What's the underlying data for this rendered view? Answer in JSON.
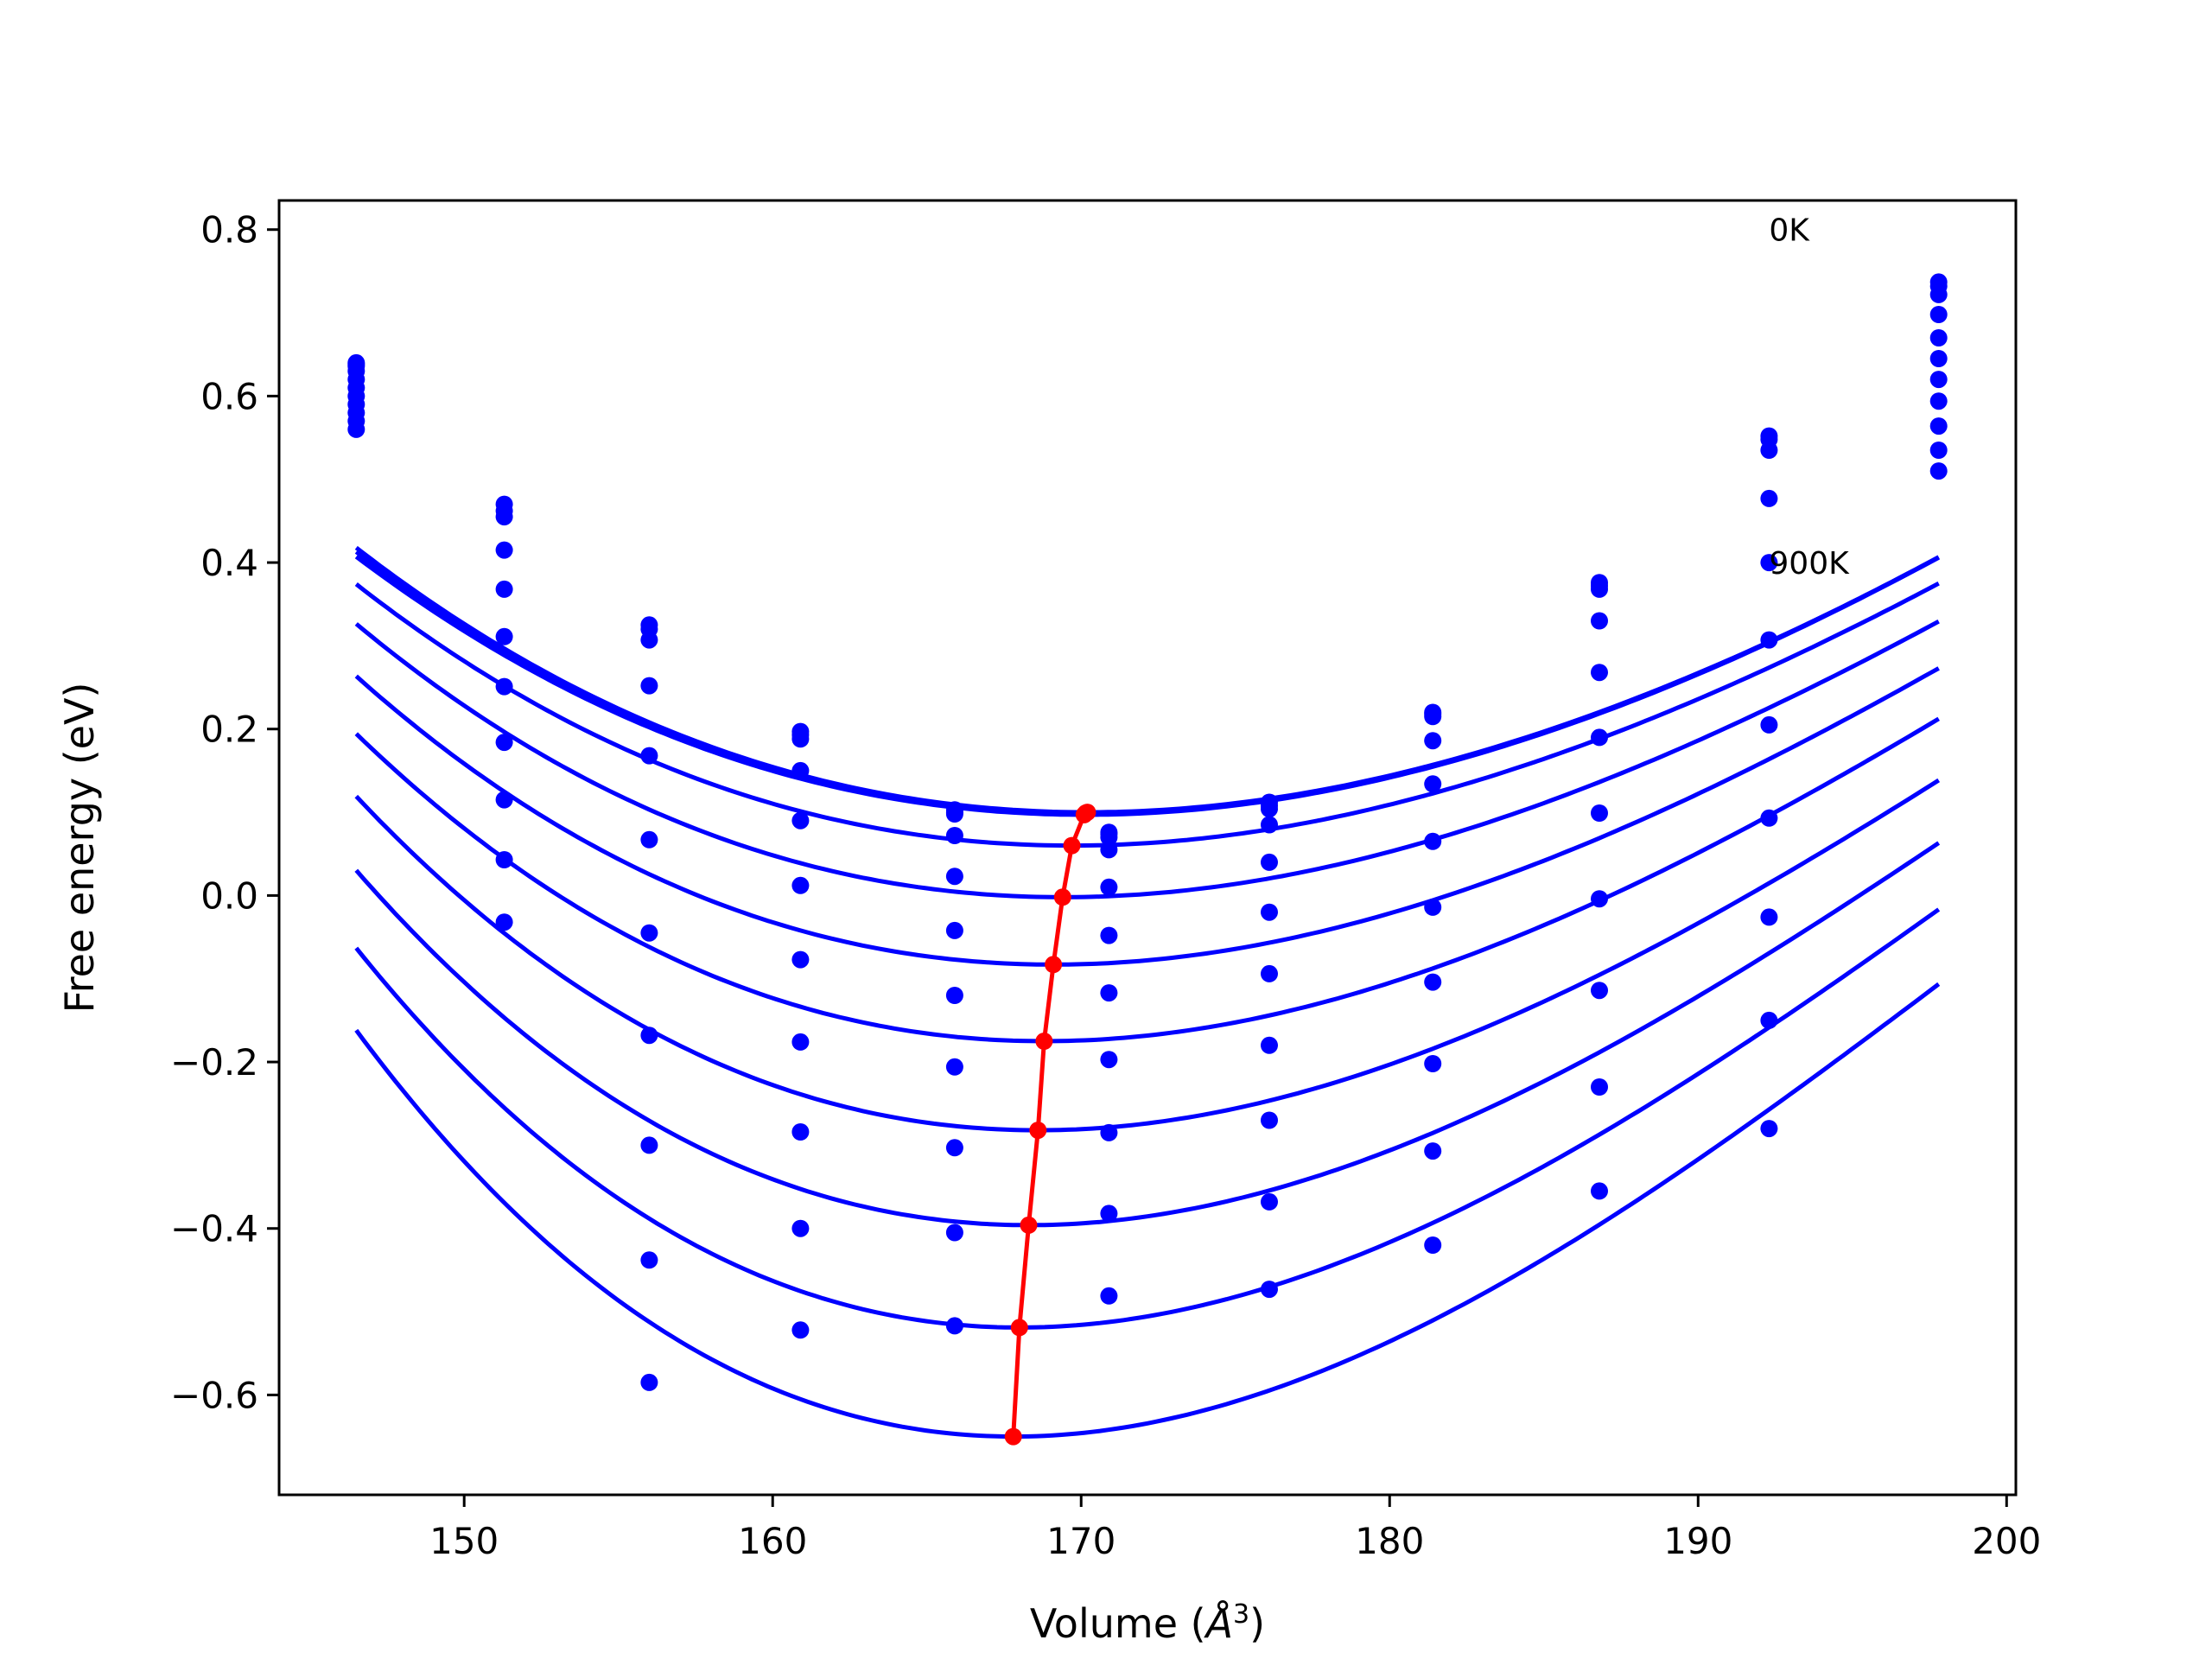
{
  "chart_data": {
    "type": "line",
    "xlabel": "Volume (",
    "xlabel_sym": "Å",
    "xlabel_exp": "3",
    "xlabel_close": ")",
    "ylabel": "Free energy (eV)",
    "xlim": [
      144,
      200.3
    ],
    "ylim": [
      -0.72,
      0.835
    ],
    "xticks": [
      150,
      160,
      170,
      180,
      190,
      200
    ],
    "yticks": [
      0.8,
      0.6,
      0.4,
      0.2,
      0.0,
      -0.2,
      -0.4,
      -0.6
    ],
    "ytick_labels": [
      "0.8",
      "0.6",
      "0.4",
      "0.2",
      "0.0",
      "−0.2",
      "−0.4",
      "−0.6"
    ],
    "grid": false,
    "annotations": [
      {
        "text": "0K",
        "x": 192.3,
        "y": 0.8
      },
      {
        "text": "900K",
        "x": 192.3,
        "y": 0.4
      }
    ],
    "colors": {
      "curves": "#0000ff",
      "points": "#0000ff",
      "minima": "#ff0000"
    },
    "fit_range": [
      146.5,
      197.8
    ],
    "point_volumes": [
      146.5,
      151.3,
      156.0,
      160.9,
      165.9,
      170.9,
      176.1,
      181.4,
      186.8,
      192.3,
      197.8
    ],
    "series": [
      {
        "v0": 170.2,
        "e0": 0.1,
        "k": 0.00049,
        "c": -3.2e-06,
        "points": [
          0.64,
          0.47,
          0.325,
          0.197,
          0.103,
          0.076,
          0.112,
          0.22,
          0.376,
          0.552,
          0.737
        ]
      },
      {
        "v0": 170.15,
        "e0": 0.099,
        "k": 0.000488,
        "c": -3.1e-06,
        "points": [
          0.638,
          0.462,
          0.32,
          0.193,
          0.1,
          0.074,
          0.108,
          0.218,
          0.372,
          0.548,
          0.732
        ]
      },
      {
        "v0": 170.1,
        "e0": 0.097,
        "k": 0.000486,
        "c": -3e-06,
        "points": [
          0.636,
          0.455,
          0.307,
          0.188,
          0.098,
          0.07,
          0.104,
          0.215,
          0.368,
          0.535,
          0.722
        ]
      },
      {
        "v0": 169.7,
        "e0": 0.06,
        "k": 0.0005,
        "c": -3.6e-06,
        "points": [
          0.63,
          0.415,
          0.252,
          0.15,
          0.072,
          0.055,
          0.085,
          0.186,
          0.33,
          0.477,
          0.698
        ]
      },
      {
        "v0": 169.4,
        "e0": -0.002,
        "k": 0.00053,
        "c": -4.2e-06,
        "points": [
          0.62,
          0.368,
          0.168,
          0.09,
          0.023,
          0.01,
          0.04,
          0.134,
          0.268,
          0.4,
          0.67
        ]
      },
      {
        "v0": 169.1,
        "e0": -0.083,
        "k": 0.00057,
        "c": -4.8e-06,
        "points": [
          0.61,
          0.311,
          0.067,
          0.012,
          -0.042,
          -0.048,
          -0.02,
          0.065,
          0.19,
          0.307,
          0.645
        ]
      },
      {
        "v0": 168.8,
        "e0": -0.175,
        "k": 0.00062,
        "c": -5.5e-06,
        "points": [
          0.6,
          0.251,
          -0.045,
          -0.077,
          -0.12,
          -0.117,
          -0.094,
          -0.014,
          0.099,
          0.205,
          0.62
        ]
      },
      {
        "v0": 168.6,
        "e0": -0.282,
        "k": 0.00068,
        "c": -6.4e-06,
        "points": [
          0.59,
          0.184,
          -0.168,
          -0.176,
          -0.206,
          -0.197,
          -0.18,
          -0.104,
          -0.004,
          0.093,
          0.594
        ]
      },
      {
        "v0": 168.3,
        "e0": -0.396,
        "k": 0.00074,
        "c": -7.2e-06,
        "points": [
          0.58,
          0.115,
          -0.3,
          -0.284,
          -0.303,
          -0.285,
          -0.27,
          -0.202,
          -0.114,
          -0.026,
          0.564
        ]
      },
      {
        "v0": 168.0,
        "e0": -0.519,
        "k": 0.00081,
        "c": -8.2e-06,
        "points": [
          0.57,
          0.043,
          -0.438,
          -0.4,
          -0.405,
          -0.382,
          -0.368,
          -0.307,
          -0.23,
          -0.15,
          0.535
        ]
      },
      {
        "v0": 167.8,
        "e0": -0.65,
        "k": 0.00088,
        "c": -9.2e-06,
        "points": [
          0.56,
          -0.032,
          -0.585,
          -0.522,
          -0.517,
          -0.481,
          -0.473,
          -0.42,
          -0.355,
          -0.28,
          0.51
        ]
      }
    ],
    "minima": {
      "v": [
        170.2,
        170.15,
        170.1,
        169.7,
        169.4,
        169.1,
        168.8,
        168.6,
        168.3,
        168.0,
        167.8
      ],
      "e": [
        0.1,
        0.099,
        0.097,
        0.06,
        -0.002,
        -0.083,
        -0.175,
        -0.282,
        -0.396,
        -0.519,
        -0.65
      ]
    }
  }
}
